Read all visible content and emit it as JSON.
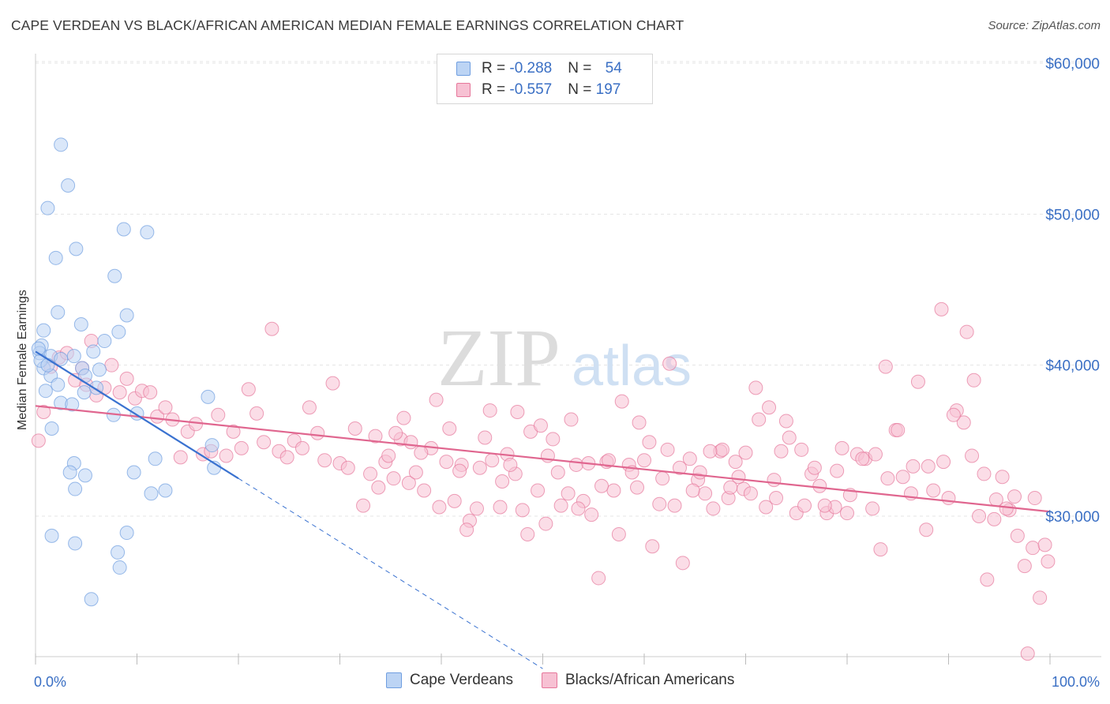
{
  "title": "CAPE VERDEAN VS BLACK/AFRICAN AMERICAN MEDIAN FEMALE EARNINGS CORRELATION CHART",
  "source": "Source: ZipAtlas.com",
  "watermark": {
    "zip": "ZIP",
    "atlas": "atlas"
  },
  "legend": {
    "rows": [
      {
        "r_label": "R = ",
        "r_value": "-0.288",
        "n_label": "N = ",
        "n_value": "54",
        "color": "#aecbf0"
      },
      {
        "r_label": "R = ",
        "r_value": "-0.557",
        "n_label": "N = ",
        "n_value": "197",
        "color": "#f7b8cc"
      }
    ]
  },
  "chart_data": {
    "type": "scatter",
    "title": "CAPE VERDEAN VS BLACK/AFRICAN AMERICAN MEDIAN FEMALE EARNINGS CORRELATION CHART",
    "xlabel": "",
    "ylabel": "Median Female Earnings",
    "x_tick_labels": [
      "0.0%",
      "100.0%"
    ],
    "y_tick_labels": [
      "$30,000",
      "$40,000",
      "$50,000",
      "$60,000"
    ],
    "y_ticks": [
      30000,
      40000,
      50000,
      60000
    ],
    "xlim": [
      0,
      100
    ],
    "ylim": [
      19000,
      61000
    ],
    "grid": true,
    "legend_position": "bottom",
    "series": [
      {
        "name": "Cape Verdeans",
        "color": "#6f9ee0",
        "fill": "#bcd4f4",
        "trend": {
          "x0": 0.0,
          "y0": 40900,
          "x1": 20.0,
          "y1": 32500,
          "dashed_to_x": 50.0,
          "dashed_to_y": 19900
        },
        "points": [
          [
            2.5,
            54600
          ],
          [
            3.2,
            51900
          ],
          [
            1.2,
            50400
          ],
          [
            8.7,
            49000
          ],
          [
            11.0,
            48800
          ],
          [
            4.0,
            47700
          ],
          [
            2.0,
            47100
          ],
          [
            7.8,
            45900
          ],
          [
            2.2,
            43500
          ],
          [
            9.0,
            43300
          ],
          [
            0.8,
            42300
          ],
          [
            4.5,
            42700
          ],
          [
            6.8,
            41600
          ],
          [
            8.2,
            42200
          ],
          [
            0.6,
            41300
          ],
          [
            0.4,
            40800
          ],
          [
            5.7,
            40900
          ],
          [
            1.5,
            40600
          ],
          [
            2.5,
            40400
          ],
          [
            3.8,
            40600
          ],
          [
            0.8,
            39800
          ],
          [
            4.6,
            39800
          ],
          [
            6.3,
            39700
          ],
          [
            1.5,
            39300
          ],
          [
            4.9,
            39300
          ],
          [
            1.0,
            38300
          ],
          [
            4.8,
            38200
          ],
          [
            17.0,
            37900
          ],
          [
            2.5,
            37500
          ],
          [
            3.6,
            37400
          ],
          [
            10.0,
            36800
          ],
          [
            7.7,
            36700
          ],
          [
            1.6,
            35800
          ],
          [
            17.4,
            34700
          ],
          [
            3.8,
            33500
          ],
          [
            11.8,
            33800
          ],
          [
            17.6,
            33200
          ],
          [
            3.4,
            32900
          ],
          [
            9.7,
            32900
          ],
          [
            4.9,
            32700
          ],
          [
            3.9,
            31800
          ],
          [
            11.4,
            31500
          ],
          [
            12.8,
            31700
          ],
          [
            1.6,
            28700
          ],
          [
            3.9,
            28200
          ],
          [
            9.0,
            28900
          ],
          [
            8.1,
            27600
          ],
          [
            8.3,
            26600
          ],
          [
            5.5,
            24500
          ],
          [
            0.5,
            40300
          ],
          [
            1.2,
            40000
          ],
          [
            2.2,
            38700
          ],
          [
            6.0,
            38500
          ],
          [
            0.3,
            41100
          ]
        ]
      },
      {
        "name": "Blacks/African Americans",
        "color": "#e6779b",
        "fill": "#f7c1d3",
        "trend": {
          "x0": 0.0,
          "y0": 37300,
          "x1": 100.0,
          "y1": 30300
        },
        "points": [
          [
            0.3,
            35000
          ],
          [
            0.8,
            36900
          ],
          [
            1.5,
            39900
          ],
          [
            2.3,
            40500
          ],
          [
            3.1,
            40800
          ],
          [
            3.9,
            39000
          ],
          [
            4.6,
            39800
          ],
          [
            5.0,
            38700
          ],
          [
            5.5,
            41600
          ],
          [
            6.0,
            38000
          ],
          [
            6.8,
            38500
          ],
          [
            7.5,
            40000
          ],
          [
            8.3,
            38200
          ],
          [
            9.0,
            39100
          ],
          [
            9.8,
            37800
          ],
          [
            10.5,
            38300
          ],
          [
            11.3,
            38200
          ],
          [
            12.0,
            36600
          ],
          [
            12.8,
            37200
          ],
          [
            13.5,
            36400
          ],
          [
            14.3,
            33900
          ],
          [
            15.0,
            35600
          ],
          [
            15.8,
            36100
          ],
          [
            16.5,
            34100
          ],
          [
            17.3,
            34300
          ],
          [
            18.0,
            36700
          ],
          [
            18.8,
            34000
          ],
          [
            19.5,
            35600
          ],
          [
            20.3,
            34500
          ],
          [
            21.0,
            38400
          ],
          [
            21.8,
            36800
          ],
          [
            22.5,
            34900
          ],
          [
            23.3,
            42400
          ],
          [
            24.0,
            34300
          ],
          [
            24.8,
            33900
          ],
          [
            25.5,
            35000
          ],
          [
            26.3,
            34500
          ],
          [
            27.0,
            37200
          ],
          [
            27.8,
            35500
          ],
          [
            28.5,
            33700
          ],
          [
            29.3,
            38800
          ],
          [
            30.0,
            33500
          ],
          [
            30.8,
            33200
          ],
          [
            31.5,
            35800
          ],
          [
            32.3,
            30700
          ],
          [
            33.0,
            32800
          ],
          [
            33.8,
            31900
          ],
          [
            34.5,
            33600
          ],
          [
            35.3,
            32500
          ],
          [
            36.0,
            35100
          ],
          [
            36.8,
            32200
          ],
          [
            37.5,
            32900
          ],
          [
            38.3,
            31700
          ],
          [
            39.0,
            34500
          ],
          [
            39.8,
            30600
          ],
          [
            40.5,
            33600
          ],
          [
            41.3,
            31000
          ],
          [
            42.0,
            33400
          ],
          [
            42.8,
            29700
          ],
          [
            43.5,
            30500
          ],
          [
            44.3,
            35200
          ],
          [
            45.0,
            33700
          ],
          [
            45.8,
            30600
          ],
          [
            46.5,
            34100
          ],
          [
            47.3,
            32800
          ],
          [
            48.0,
            30400
          ],
          [
            48.8,
            35600
          ],
          [
            49.5,
            31700
          ],
          [
            50.3,
            29500
          ],
          [
            51.0,
            35100
          ],
          [
            51.8,
            30700
          ],
          [
            52.5,
            31500
          ],
          [
            53.3,
            33400
          ],
          [
            54.0,
            31000
          ],
          [
            54.8,
            30100
          ],
          [
            55.5,
            25900
          ],
          [
            56.3,
            33600
          ],
          [
            57.0,
            31700
          ],
          [
            57.8,
            37600
          ],
          [
            58.5,
            33400
          ],
          [
            59.3,
            31900
          ],
          [
            60.0,
            33700
          ],
          [
            60.8,
            28000
          ],
          [
            61.5,
            30800
          ],
          [
            62.3,
            34400
          ],
          [
            63.0,
            30700
          ],
          [
            63.8,
            26900
          ],
          [
            64.5,
            33800
          ],
          [
            65.3,
            32400
          ],
          [
            66.0,
            31500
          ],
          [
            66.8,
            30500
          ],
          [
            67.5,
            34300
          ],
          [
            68.3,
            31200
          ],
          [
            69.0,
            33600
          ],
          [
            69.8,
            31800
          ],
          [
            70.5,
            31500
          ],
          [
            71.3,
            36400
          ],
          [
            72.0,
            30600
          ],
          [
            72.8,
            32400
          ],
          [
            73.5,
            34300
          ],
          [
            74.3,
            35200
          ],
          [
            75.0,
            30200
          ],
          [
            75.8,
            30700
          ],
          [
            76.5,
            32800
          ],
          [
            77.3,
            32000
          ],
          [
            78.0,
            30200
          ],
          [
            78.8,
            30600
          ],
          [
            79.5,
            34500
          ],
          [
            80.3,
            31400
          ],
          [
            81.0,
            34100
          ],
          [
            81.8,
            33800
          ],
          [
            82.5,
            30500
          ],
          [
            83.3,
            27800
          ],
          [
            84.0,
            32500
          ],
          [
            84.8,
            35700
          ],
          [
            85.5,
            32600
          ],
          [
            86.3,
            31500
          ],
          [
            87.0,
            38900
          ],
          [
            87.8,
            29100
          ],
          [
            88.5,
            31700
          ],
          [
            89.3,
            43700
          ],
          [
            90.0,
            31200
          ],
          [
            90.8,
            37000
          ],
          [
            91.5,
            36200
          ],
          [
            92.3,
            34000
          ],
          [
            93.0,
            30000
          ],
          [
            93.8,
            25800
          ],
          [
            94.5,
            29800
          ],
          [
            95.3,
            32600
          ],
          [
            96.0,
            30400
          ],
          [
            96.8,
            28700
          ],
          [
            97.5,
            26700
          ],
          [
            98.3,
            27900
          ],
          [
            99.0,
            24600
          ],
          [
            99.5,
            28100
          ],
          [
            99.8,
            27000
          ],
          [
            98.5,
            31200
          ],
          [
            97.8,
            20900
          ],
          [
            96.5,
            31300
          ],
          [
            95.7,
            30500
          ],
          [
            94.7,
            31100
          ],
          [
            93.5,
            32800
          ],
          [
            92.5,
            39000
          ],
          [
            91.8,
            42200
          ],
          [
            90.5,
            36700
          ],
          [
            89.5,
            33600
          ],
          [
            88.0,
            33300
          ],
          [
            86.5,
            33300
          ],
          [
            85.0,
            35700
          ],
          [
            83.8,
            39900
          ],
          [
            82.8,
            34100
          ],
          [
            81.5,
            33800
          ],
          [
            80.0,
            30200
          ],
          [
            79.0,
            33000
          ],
          [
            77.8,
            30700
          ],
          [
            76.8,
            33200
          ],
          [
            75.5,
            34400
          ],
          [
            74.0,
            36300
          ],
          [
            73.0,
            31200
          ],
          [
            72.3,
            37200
          ],
          [
            71.0,
            38500
          ],
          [
            70.0,
            34200
          ],
          [
            69.3,
            32600
          ],
          [
            68.5,
            31900
          ],
          [
            67.7,
            34400
          ],
          [
            66.5,
            34300
          ],
          [
            65.5,
            32900
          ],
          [
            64.8,
            31700
          ],
          [
            63.5,
            33200
          ],
          [
            62.5,
            40100
          ],
          [
            61.8,
            32500
          ],
          [
            60.5,
            34900
          ],
          [
            59.5,
            36200
          ],
          [
            58.8,
            32900
          ],
          [
            57.5,
            28800
          ],
          [
            56.5,
            33700
          ],
          [
            55.8,
            32000
          ],
          [
            54.5,
            33500
          ],
          [
            53.5,
            30500
          ],
          [
            52.8,
            36400
          ],
          [
            51.5,
            32900
          ],
          [
            50.5,
            34000
          ],
          [
            49.8,
            36000
          ],
          [
            48.5,
            28800
          ],
          [
            47.5,
            36900
          ],
          [
            46.8,
            33400
          ],
          [
            46.0,
            32300
          ],
          [
            44.8,
            37000
          ],
          [
            43.8,
            33200
          ],
          [
            42.5,
            29100
          ],
          [
            41.8,
            33000
          ],
          [
            40.8,
            35800
          ],
          [
            39.5,
            37700
          ],
          [
            38.0,
            34200
          ],
          [
            37.0,
            34900
          ],
          [
            36.3,
            36500
          ],
          [
            35.5,
            35500
          ],
          [
            34.8,
            34000
          ],
          [
            33.5,
            35300
          ]
        ]
      }
    ]
  }
}
